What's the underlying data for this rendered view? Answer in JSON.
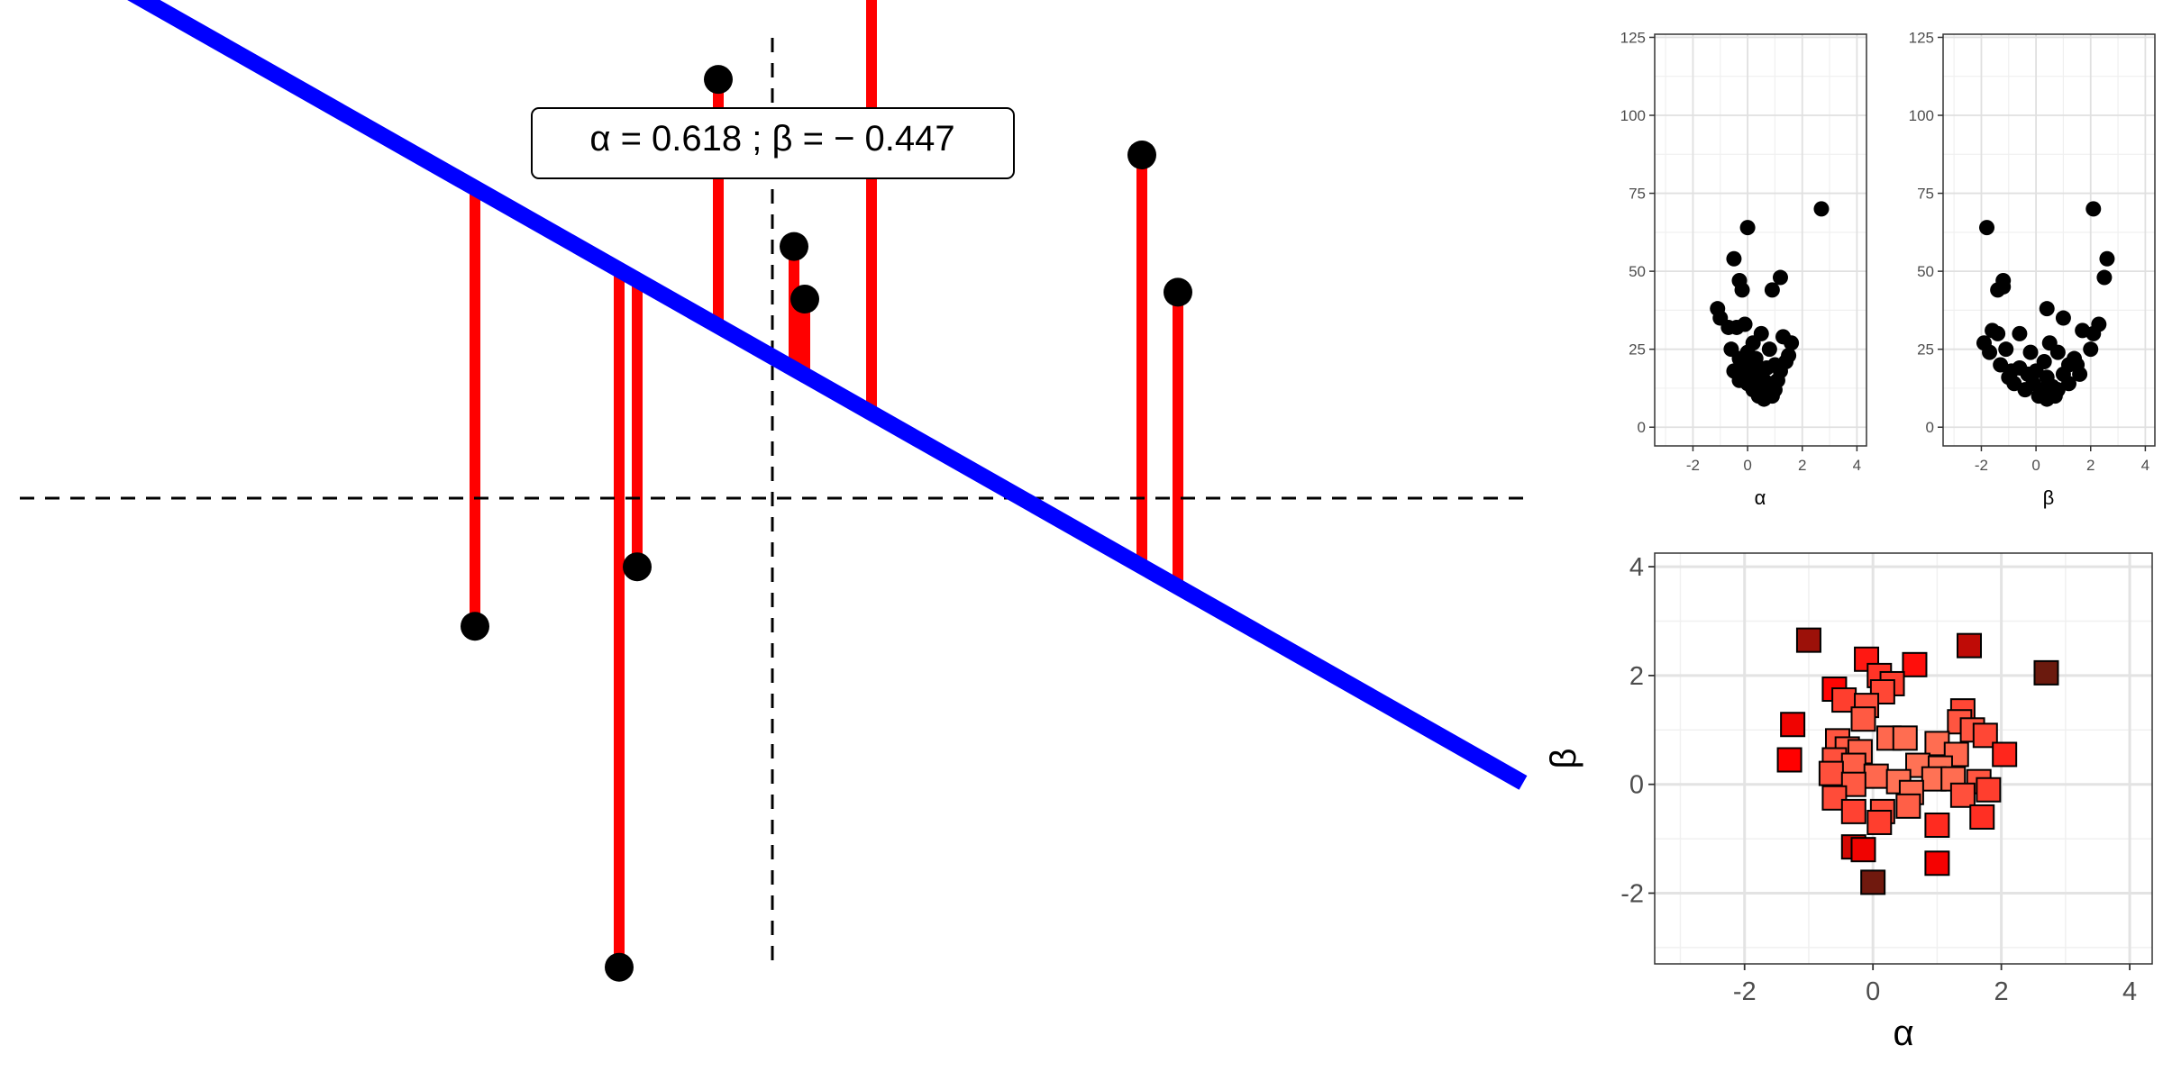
{
  "annotation": {
    "text": "α =  0.618 ;  β =  − 0.447"
  },
  "chart_data": [
    {
      "type": "line",
      "id": "regression-fit",
      "line": {
        "alpha": 0.618,
        "beta": -0.447
      },
      "points": [
        {
          "x": -1.65,
          "y": -0.56
        },
        {
          "x": -0.85,
          "y": -2.05
        },
        {
          "x": -0.75,
          "y": -0.3
        },
        {
          "x": -0.3,
          "y": 1.83
        },
        {
          "x": 0.12,
          "y": 1.1
        },
        {
          "x": 0.18,
          "y": 0.87
        },
        {
          "x": 0.55,
          "y": 2.55
        },
        {
          "x": 2.05,
          "y": 1.5
        },
        {
          "x": 2.25,
          "y": 0.9
        }
      ],
      "colors": {
        "line": "#0000ff",
        "residual": "#ff0000",
        "point": "#000000"
      }
    },
    {
      "type": "scatter",
      "id": "loss-vs-alpha",
      "xlabel": "α",
      "xlim": [
        -3.4,
        4.35
      ],
      "ylim": [
        -6,
        126
      ],
      "x_ticks": [
        "-2",
        "0",
        "2",
        "4"
      ],
      "y_ticks": [
        "0",
        "25",
        "50",
        "75",
        "100",
        "125"
      ],
      "points": [
        {
          "x": 2.7,
          "y": 70
        },
        {
          "x": 0.0,
          "y": 64
        },
        {
          "x": -0.5,
          "y": 54
        },
        {
          "x": -0.3,
          "y": 47
        },
        {
          "x": -0.2,
          "y": 44
        },
        {
          "x": 1.2,
          "y": 48
        },
        {
          "x": 0.9,
          "y": 44
        },
        {
          "x": -1.1,
          "y": 38
        },
        {
          "x": -1.0,
          "y": 35
        },
        {
          "x": -0.7,
          "y": 32
        },
        {
          "x": -0.4,
          "y": 32
        },
        {
          "x": -0.1,
          "y": 33
        },
        {
          "x": 0.5,
          "y": 30
        },
        {
          "x": 0.2,
          "y": 27
        },
        {
          "x": 0.8,
          "y": 25
        },
        {
          "x": 1.3,
          "y": 29
        },
        {
          "x": 1.6,
          "y": 27
        },
        {
          "x": -0.6,
          "y": 25
        },
        {
          "x": -0.3,
          "y": 22
        },
        {
          "x": 0.0,
          "y": 24
        },
        {
          "x": 0.3,
          "y": 22
        },
        {
          "x": 1.0,
          "y": 20
        },
        {
          "x": 1.4,
          "y": 21
        },
        {
          "x": -0.5,
          "y": 18
        },
        {
          "x": -0.2,
          "y": 17
        },
        {
          "x": 0.1,
          "y": 16
        },
        {
          "x": 0.4,
          "y": 18
        },
        {
          "x": 0.7,
          "y": 19
        },
        {
          "x": 1.2,
          "y": 18
        },
        {
          "x": -0.3,
          "y": 15
        },
        {
          "x": 0.0,
          "y": 14
        },
        {
          "x": 0.3,
          "y": 13
        },
        {
          "x": 0.6,
          "y": 15
        },
        {
          "x": 0.9,
          "y": 14
        },
        {
          "x": 1.1,
          "y": 15
        },
        {
          "x": 0.2,
          "y": 12
        },
        {
          "x": 0.5,
          "y": 11
        },
        {
          "x": 0.8,
          "y": 12
        },
        {
          "x": 1.0,
          "y": 12
        },
        {
          "x": 0.4,
          "y": 10
        },
        {
          "x": 0.7,
          "y": 10
        },
        {
          "x": 0.9,
          "y": 10
        },
        {
          "x": 0.6,
          "y": 9
        },
        {
          "x": -0.1,
          "y": 20
        },
        {
          "x": 0.2,
          "y": 19
        },
        {
          "x": 0.5,
          "y": 17
        },
        {
          "x": 1.5,
          "y": 23
        }
      ]
    },
    {
      "type": "scatter",
      "id": "loss-vs-beta",
      "xlabel": "β",
      "xlim": [
        -3.4,
        4.35
      ],
      "ylim": [
        -6,
        126
      ],
      "x_ticks": [
        "-2",
        "0",
        "2",
        "4"
      ],
      "y_ticks": [
        "0",
        "25",
        "50",
        "75",
        "100",
        "125"
      ],
      "points": [
        {
          "x": 2.1,
          "y": 70
        },
        {
          "x": -1.8,
          "y": 64
        },
        {
          "x": 2.6,
          "y": 54
        },
        {
          "x": 2.5,
          "y": 48
        },
        {
          "x": -1.2,
          "y": 47
        },
        {
          "x": -1.4,
          "y": 44
        },
        {
          "x": -1.2,
          "y": 45
        },
        {
          "x": 0.4,
          "y": 38
        },
        {
          "x": 1.0,
          "y": 35
        },
        {
          "x": 2.3,
          "y": 33
        },
        {
          "x": 1.7,
          "y": 31
        },
        {
          "x": 2.1,
          "y": 30
        },
        {
          "x": -1.6,
          "y": 31
        },
        {
          "x": -1.4,
          "y": 30
        },
        {
          "x": -0.6,
          "y": 30
        },
        {
          "x": -1.9,
          "y": 27
        },
        {
          "x": -1.1,
          "y": 25
        },
        {
          "x": 0.5,
          "y": 27
        },
        {
          "x": 2.0,
          "y": 25
        },
        {
          "x": -1.7,
          "y": 24
        },
        {
          "x": -0.2,
          "y": 24
        },
        {
          "x": 0.8,
          "y": 24
        },
        {
          "x": 1.5,
          "y": 20
        },
        {
          "x": -1.3,
          "y": 20
        },
        {
          "x": -0.6,
          "y": 19
        },
        {
          "x": 0.3,
          "y": 21
        },
        {
          "x": 1.2,
          "y": 20
        },
        {
          "x": -1.0,
          "y": 16
        },
        {
          "x": -0.3,
          "y": 17
        },
        {
          "x": 0.4,
          "y": 16
        },
        {
          "x": 1.0,
          "y": 17
        },
        {
          "x": 1.6,
          "y": 17
        },
        {
          "x": -0.8,
          "y": 14
        },
        {
          "x": -0.1,
          "y": 14
        },
        {
          "x": 0.6,
          "y": 13
        },
        {
          "x": 1.2,
          "y": 14
        },
        {
          "x": -0.4,
          "y": 12
        },
        {
          "x": 0.2,
          "y": 12
        },
        {
          "x": 0.8,
          "y": 12
        },
        {
          "x": 0.1,
          "y": 10
        },
        {
          "x": 0.5,
          "y": 10
        },
        {
          "x": 0.7,
          "y": 10
        },
        {
          "x": 0.4,
          "y": 9
        },
        {
          "x": -0.9,
          "y": 18
        },
        {
          "x": 0.0,
          "y": 18
        },
        {
          "x": 1.4,
          "y": 22
        }
      ]
    },
    {
      "type": "scatter",
      "id": "alpha-beta-grid",
      "xlabel": "α",
      "ylabel": "β",
      "xlim": [
        -3.4,
        4.35
      ],
      "ylim": [
        -3.3,
        4.25
      ],
      "x_ticks": [
        "-2",
        "0",
        "2",
        "4"
      ],
      "y_ticks": [
        "-2",
        "0",
        "2",
        "4"
      ],
      "color_scale": {
        "low": "#ff7b5c",
        "mid": "#ff0000",
        "high": "#6b1a0e"
      },
      "points": [
        {
          "x": -1.0,
          "y": 2.65,
          "loss": 55
        },
        {
          "x": -0.1,
          "y": 2.3,
          "loss": 30
        },
        {
          "x": 0.65,
          "y": 2.2,
          "loss": 32
        },
        {
          "x": 1.5,
          "y": 2.55,
          "loss": 48
        },
        {
          "x": 2.7,
          "y": 2.05,
          "loss": 70
        },
        {
          "x": 0.1,
          "y": 2.0,
          "loss": 24
        },
        {
          "x": 0.3,
          "y": 1.85,
          "loss": 22
        },
        {
          "x": -0.6,
          "y": 1.75,
          "loss": 34
        },
        {
          "x": 0.15,
          "y": 1.7,
          "loss": 20
        },
        {
          "x": -0.45,
          "y": 1.55,
          "loss": 22
        },
        {
          "x": -0.1,
          "y": 1.45,
          "loss": 18
        },
        {
          "x": 1.4,
          "y": 1.35,
          "loss": 20
        },
        {
          "x": -0.15,
          "y": 1.2,
          "loss": 16
        },
        {
          "x": 1.35,
          "y": 1.15,
          "loss": 17
        },
        {
          "x": 1.55,
          "y": 1.0,
          "loss": 17
        },
        {
          "x": 1.75,
          "y": 0.9,
          "loss": 20
        },
        {
          "x": -1.25,
          "y": 1.1,
          "loss": 38
        },
        {
          "x": -0.55,
          "y": 0.8,
          "loss": 17
        },
        {
          "x": 0.25,
          "y": 0.85,
          "loss": 13
        },
        {
          "x": 0.5,
          "y": 0.85,
          "loss": 12
        },
        {
          "x": 1.0,
          "y": 0.75,
          "loss": 12
        },
        {
          "x": -0.4,
          "y": 0.65,
          "loss": 16
        },
        {
          "x": -0.2,
          "y": 0.6,
          "loss": 14
        },
        {
          "x": 2.05,
          "y": 0.55,
          "loss": 27
        },
        {
          "x": 1.3,
          "y": 0.55,
          "loss": 13
        },
        {
          "x": -1.3,
          "y": 0.45,
          "loss": 35
        },
        {
          "x": -0.6,
          "y": 0.45,
          "loss": 18
        },
        {
          "x": -0.3,
          "y": 0.35,
          "loss": 15
        },
        {
          "x": 0.7,
          "y": 0.35,
          "loss": 11
        },
        {
          "x": 1.05,
          "y": 0.3,
          "loss": 11
        },
        {
          "x": -0.65,
          "y": 0.2,
          "loss": 18
        },
        {
          "x": 0.05,
          "y": 0.15,
          "loss": 13
        },
        {
          "x": 0.95,
          "y": 0.1,
          "loss": 11
        },
        {
          "x": 1.25,
          "y": 0.1,
          "loss": 12
        },
        {
          "x": -0.3,
          "y": 0.0,
          "loss": 16
        },
        {
          "x": 0.4,
          "y": 0.05,
          "loss": 11
        },
        {
          "x": 1.65,
          "y": 0.05,
          "loss": 17
        },
        {
          "x": -0.6,
          "y": -0.25,
          "loss": 19
        },
        {
          "x": 0.6,
          "y": -0.15,
          "loss": 12
        },
        {
          "x": 1.4,
          "y": -0.2,
          "loss": 18
        },
        {
          "x": 1.8,
          "y": -0.1,
          "loss": 22
        },
        {
          "x": -0.3,
          "y": -0.5,
          "loss": 21
        },
        {
          "x": 0.15,
          "y": -0.5,
          "loss": 18
        },
        {
          "x": 0.55,
          "y": -0.4,
          "loss": 15
        },
        {
          "x": 0.1,
          "y": -0.7,
          "loss": 22
        },
        {
          "x": 1.7,
          "y": -0.6,
          "loss": 25
        },
        {
          "x": 1.0,
          "y": -0.75,
          "loss": 26
        },
        {
          "x": -0.3,
          "y": -1.15,
          "loss": 44
        },
        {
          "x": -0.15,
          "y": -1.2,
          "loss": 38
        },
        {
          "x": 1.0,
          "y": -1.45,
          "loss": 37
        },
        {
          "x": 0.0,
          "y": -1.8,
          "loss": 64
        }
      ]
    }
  ]
}
